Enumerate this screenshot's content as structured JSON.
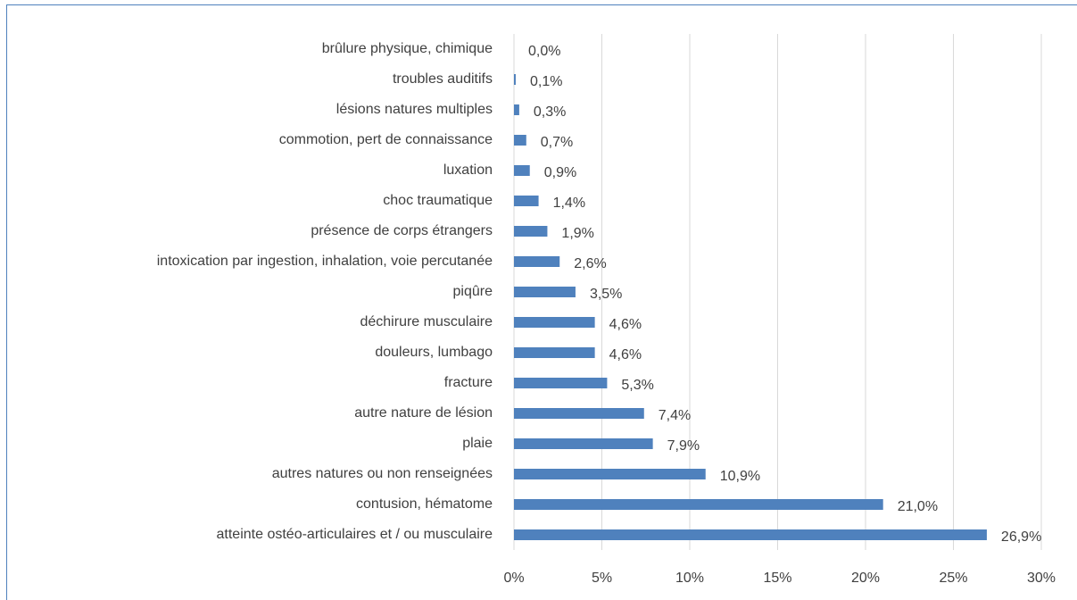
{
  "chart_data": {
    "type": "bar",
    "orientation": "horizontal",
    "categories": [
      "brûlure physique, chimique",
      "troubles auditifs",
      "lésions natures multiples",
      "commotion, pert de connaissance",
      "luxation",
      "choc traumatique",
      "présence de corps étrangers",
      "intoxication par ingestion, inhalation, voie percutanée",
      "piqûre",
      "déchirure musculaire",
      "douleurs, lumbago",
      "fracture",
      "autre nature de lésion",
      "plaie",
      "autres natures ou non renseignées",
      "contusion, hématome",
      "atteinte ostéo-articulaires et / ou musculaire"
    ],
    "values": [
      0.0,
      0.1,
      0.3,
      0.7,
      0.9,
      1.4,
      1.9,
      2.6,
      3.5,
      4.6,
      4.6,
      5.3,
      7.4,
      7.9,
      10.9,
      21.0,
      26.9
    ],
    "value_labels": [
      "0,0%",
      "0,1%",
      "0,3%",
      "0,7%",
      "0,9%",
      "1,4%",
      "1,9%",
      "2,6%",
      "3,5%",
      "4,6%",
      "4,6%",
      "5,3%",
      "7,4%",
      "7,9%",
      "10,9%",
      "21,0%",
      "26,9%"
    ],
    "color": "#4f81bd",
    "xlim": [
      0,
      30
    ],
    "xticks": [
      {
        "value": 0,
        "label": "0%"
      },
      {
        "value": 5,
        "label": "5%"
      },
      {
        "value": 10,
        "label": "10%"
      },
      {
        "value": 15,
        "label": "15%"
      },
      {
        "value": 20,
        "label": "20%"
      },
      {
        "value": 25,
        "label": "25%"
      },
      {
        "value": 30,
        "label": "30%"
      }
    ],
    "grid": true
  }
}
